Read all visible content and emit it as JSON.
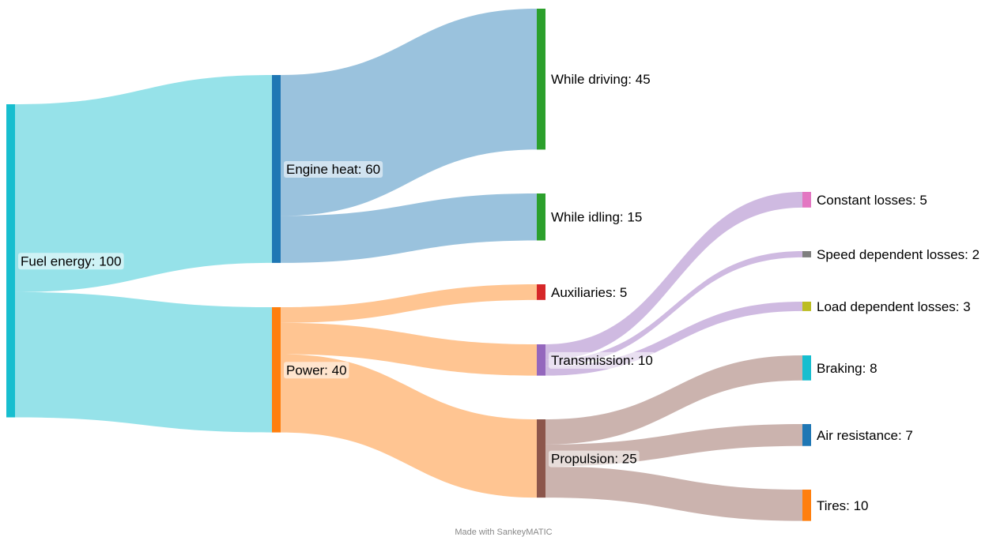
{
  "chart_data": {
    "type": "sankey",
    "title": "",
    "nodes": [
      {
        "id": "fuel",
        "label": "Fuel energy: 100",
        "value": 100,
        "color": "#17becf",
        "column": 0
      },
      {
        "id": "engine",
        "label": "Engine heat: 60",
        "value": 60,
        "color": "#1f77b4",
        "column": 1
      },
      {
        "id": "power",
        "label": "Power: 40",
        "value": 40,
        "color": "#ff7f0e",
        "column": 1
      },
      {
        "id": "driving",
        "label": "While driving: 45",
        "value": 45,
        "color": "#2ca02c",
        "column": 2
      },
      {
        "id": "idling",
        "label": "While idling: 15",
        "value": 15,
        "color": "#2ca02c",
        "column": 2
      },
      {
        "id": "aux",
        "label": "Auxiliaries: 5",
        "value": 5,
        "color": "#d62728",
        "column": 2
      },
      {
        "id": "trans",
        "label": "Transmission: 10",
        "value": 10,
        "color": "#9467bd",
        "column": 2
      },
      {
        "id": "prop",
        "label": "Propulsion: 25",
        "value": 25,
        "color": "#8c564b",
        "column": 2
      },
      {
        "id": "const",
        "label": "Constant losses: 5",
        "value": 5,
        "color": "#e377c2",
        "column": 3
      },
      {
        "id": "speed",
        "label": "Speed dependent losses: 2",
        "value": 2,
        "color": "#7f7f7f",
        "column": 3
      },
      {
        "id": "load",
        "label": "Load dependent losses: 3",
        "value": 3,
        "color": "#bcbd22",
        "column": 3
      },
      {
        "id": "brake",
        "label": "Braking: 8",
        "value": 8,
        "color": "#17becf",
        "column": 3
      },
      {
        "id": "air",
        "label": "Air resistance: 7",
        "value": 7,
        "color": "#1f77b4",
        "column": 3
      },
      {
        "id": "tires",
        "label": "Tires: 10",
        "value": 10,
        "color": "#ff7f0e",
        "column": 3
      }
    ],
    "links": [
      {
        "source": "fuel",
        "target": "engine",
        "value": 60
      },
      {
        "source": "fuel",
        "target": "power",
        "value": 40
      },
      {
        "source": "engine",
        "target": "driving",
        "value": 45
      },
      {
        "source": "engine",
        "target": "idling",
        "value": 15
      },
      {
        "source": "power",
        "target": "aux",
        "value": 5
      },
      {
        "source": "power",
        "target": "trans",
        "value": 10
      },
      {
        "source": "power",
        "target": "prop",
        "value": 25
      },
      {
        "source": "trans",
        "target": "const",
        "value": 5
      },
      {
        "source": "trans",
        "target": "speed",
        "value": 2
      },
      {
        "source": "trans",
        "target": "load",
        "value": 3
      },
      {
        "source": "prop",
        "target": "brake",
        "value": 8
      },
      {
        "source": "prop",
        "target": "air",
        "value": 7
      },
      {
        "source": "prop",
        "target": "tires",
        "value": 10
      }
    ]
  },
  "credit": "Made with SankeyMATIC"
}
